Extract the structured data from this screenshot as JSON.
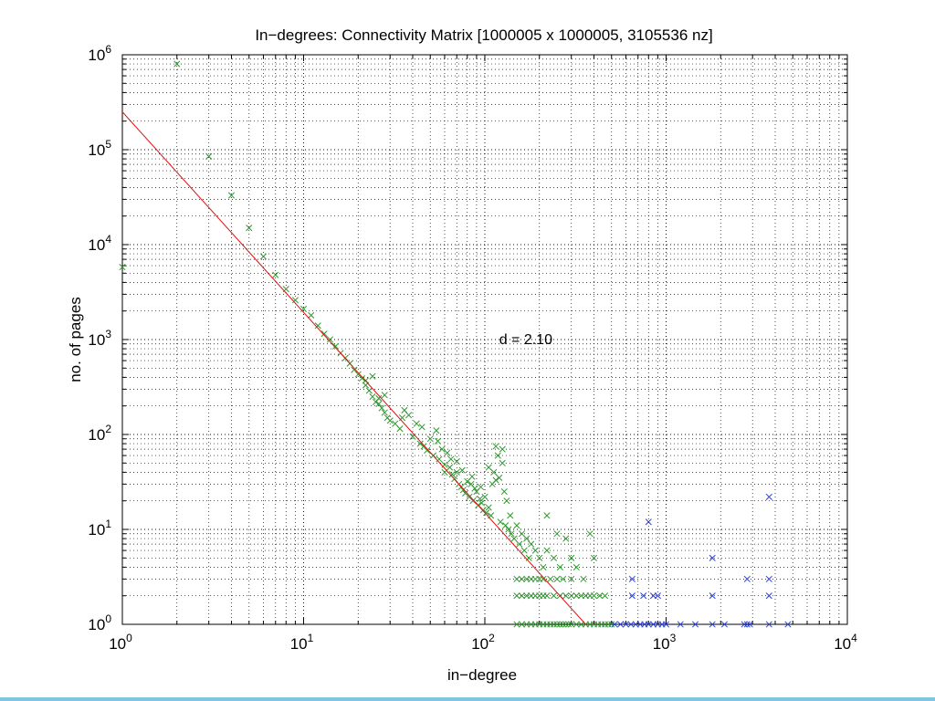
{
  "colors": {
    "background": "#ffffff",
    "green": "#2e9a2e",
    "blue": "#2a3fe0",
    "fit_line": "#e01010",
    "bottom_bar": "#7fc6e3"
  },
  "chart_data": {
    "type": "scatter",
    "title": "In−degrees: Connectivity Matrix [1000005 x 1000005, 3105536 nz]",
    "xlabel": "in−degree",
    "ylabel": "no. of pages",
    "xscale": "log",
    "yscale": "log",
    "xlim": [
      1,
      10000
    ],
    "ylim": [
      1,
      1000000
    ],
    "grid": "on",
    "x_ticks": [
      {
        "base": "10",
        "exp": "0",
        "value": 1
      },
      {
        "base": "10",
        "exp": "1",
        "value": 10
      },
      {
        "base": "10",
        "exp": "2",
        "value": 100
      },
      {
        "base": "10",
        "exp": "3",
        "value": 1000
      },
      {
        "base": "10",
        "exp": "4",
        "value": 10000
      }
    ],
    "y_ticks": [
      {
        "base": "10",
        "exp": "0",
        "value": 1
      },
      {
        "base": "10",
        "exp": "1",
        "value": 10
      },
      {
        "base": "10",
        "exp": "2",
        "value": 100
      },
      {
        "base": "10",
        "exp": "3",
        "value": 1000
      },
      {
        "base": "10",
        "exp": "4",
        "value": 10000
      },
      {
        "base": "10",
        "exp": "5",
        "value": 100000
      },
      {
        "base": "10",
        "exp": "6",
        "value": 1000000
      }
    ],
    "annotation": {
      "text": "d = 2.10",
      "x": 120,
      "y": 900
    },
    "fit_line": {
      "x": [
        1,
        360
      ],
      "y": [
        250000,
        1
      ]
    },
    "series": [
      {
        "color": "green",
        "marker": "x",
        "points": [
          [
            1,
            5800
          ],
          [
            2,
            800000
          ],
          [
            3,
            85000
          ],
          [
            4,
            33000
          ],
          [
            5,
            15000
          ],
          [
            6,
            7500
          ],
          [
            7,
            4800
          ],
          [
            8,
            3400
          ],
          [
            9,
            2600
          ],
          [
            10,
            2100
          ],
          [
            11,
            1800
          ],
          [
            12,
            1400
          ],
          [
            13,
            1150
          ],
          [
            14,
            1000
          ],
          [
            15,
            850
          ],
          [
            16,
            720
          ],
          [
            17,
            640
          ],
          [
            18,
            560
          ],
          [
            19,
            480
          ],
          [
            20,
            430
          ],
          [
            21,
            390
          ],
          [
            22,
            330
          ],
          [
            23,
            290
          ],
          [
            24,
            250
          ],
          [
            25,
            220
          ],
          [
            26,
            210
          ],
          [
            27,
            190
          ],
          [
            28,
            170
          ],
          [
            29,
            150
          ],
          [
            30,
            140
          ],
          [
            22,
            370
          ],
          [
            26,
            240
          ],
          [
            32,
            130
          ],
          [
            34,
            115
          ],
          [
            36,
            180
          ],
          [
            38,
            160
          ],
          [
            40,
            95
          ],
          [
            42,
            130
          ],
          [
            44,
            80
          ],
          [
            46,
            75
          ],
          [
            48,
            68
          ],
          [
            50,
            90
          ],
          [
            52,
            60
          ],
          [
            54,
            110
          ],
          [
            56,
            55
          ],
          [
            58,
            70
          ],
          [
            60,
            48
          ],
          [
            62,
            64
          ],
          [
            64,
            45
          ],
          [
            66,
            38
          ],
          [
            68,
            34
          ],
          [
            70,
            40
          ],
          [
            72,
            30
          ],
          [
            74,
            28
          ],
          [
            76,
            26
          ],
          [
            78,
            24
          ],
          [
            80,
            32
          ],
          [
            82,
            22
          ],
          [
            84,
            30
          ],
          [
            86,
            20
          ],
          [
            88,
            27
          ],
          [
            90,
            25
          ],
          [
            92,
            18
          ],
          [
            94,
            21
          ],
          [
            96,
            19
          ],
          [
            98,
            16
          ],
          [
            100,
            22
          ],
          [
            102,
            15
          ],
          [
            105,
            17
          ],
          [
            108,
            14
          ],
          [
            110,
            30
          ],
          [
            112,
            40
          ],
          [
            115,
            75
          ],
          [
            118,
            60
          ],
          [
            120,
            35
          ],
          [
            122,
            12
          ],
          [
            125,
            50
          ],
          [
            128,
            25
          ],
          [
            130,
            11
          ],
          [
            132,
            20
          ],
          [
            135,
            10
          ],
          [
            138,
            14
          ],
          [
            140,
            9
          ],
          [
            145,
            8
          ],
          [
            150,
            11
          ],
          [
            155,
            7
          ],
          [
            160,
            9
          ],
          [
            165,
            6
          ],
          [
            170,
            8
          ],
          [
            175,
            5
          ],
          [
            180,
            7
          ],
          [
            190,
            6
          ],
          [
            200,
            5
          ],
          [
            210,
            4
          ],
          [
            220,
            6
          ],
          [
            240,
            5
          ],
          [
            260,
            4
          ],
          [
            280,
            8
          ],
          [
            300,
            5
          ],
          [
            320,
            4
          ],
          [
            350,
            3
          ],
          [
            380,
            9
          ],
          [
            400,
            5
          ],
          [
            220,
            14
          ],
          [
            250,
            9
          ],
          [
            55,
            85
          ],
          [
            65,
            55
          ],
          [
            75,
            42
          ],
          [
            85,
            36
          ],
          [
            95,
            28
          ],
          [
            105,
            45
          ],
          [
            115,
            33
          ],
          [
            125,
            70
          ],
          [
            45,
            120
          ],
          [
            35,
            150
          ],
          [
            28,
            260
          ],
          [
            24,
            410
          ],
          [
            60,
            40
          ],
          [
            70,
            52
          ],
          [
            150,
            3
          ],
          [
            160,
            3
          ],
          [
            170,
            3
          ],
          [
            180,
            3
          ],
          [
            190,
            3
          ],
          [
            200,
            3
          ],
          [
            210,
            3
          ],
          [
            230,
            3
          ],
          [
            250,
            3
          ],
          [
            270,
            3
          ],
          [
            300,
            3
          ],
          [
            150,
            2
          ],
          [
            160,
            2
          ],
          [
            170,
            2
          ],
          [
            180,
            2
          ],
          [
            190,
            2
          ],
          [
            200,
            2
          ],
          [
            210,
            2
          ],
          [
            220,
            2
          ],
          [
            240,
            2
          ],
          [
            260,
            2
          ],
          [
            280,
            2
          ],
          [
            300,
            2
          ],
          [
            320,
            2
          ],
          [
            340,
            2
          ],
          [
            360,
            2
          ],
          [
            380,
            2
          ],
          [
            400,
            2
          ],
          [
            430,
            2
          ],
          [
            460,
            2
          ],
          [
            150,
            1
          ],
          [
            160,
            1
          ],
          [
            170,
            1
          ],
          [
            180,
            1
          ],
          [
            190,
            1
          ],
          [
            200,
            1
          ],
          [
            210,
            1
          ],
          [
            220,
            1
          ],
          [
            230,
            1
          ],
          [
            240,
            1
          ],
          [
            250,
            1
          ],
          [
            260,
            1
          ],
          [
            270,
            1
          ],
          [
            280,
            1
          ],
          [
            290,
            1
          ],
          [
            300,
            1
          ],
          [
            320,
            1
          ],
          [
            340,
            1
          ],
          [
            360,
            1
          ],
          [
            380,
            1
          ],
          [
            400,
            1
          ],
          [
            420,
            1
          ],
          [
            440,
            1
          ],
          [
            460,
            1
          ],
          [
            480,
            1
          ],
          [
            500,
            1
          ]
        ]
      },
      {
        "color": "blue",
        "marker": "x",
        "points": [
          [
            800,
            12
          ],
          [
            1800,
            5
          ],
          [
            3700,
            22
          ],
          [
            650,
            3
          ],
          [
            2800,
            3
          ],
          [
            3700,
            3
          ],
          [
            650,
            2
          ],
          [
            750,
            2
          ],
          [
            850,
            2
          ],
          [
            900,
            2
          ],
          [
            1800,
            2
          ],
          [
            3700,
            2
          ],
          [
            520,
            1
          ],
          [
            560,
            1
          ],
          [
            600,
            1
          ],
          [
            640,
            1
          ],
          [
            680,
            1
          ],
          [
            720,
            1
          ],
          [
            760,
            1
          ],
          [
            800,
            1
          ],
          [
            850,
            1
          ],
          [
            900,
            1
          ],
          [
            950,
            1
          ],
          [
            1000,
            1
          ],
          [
            1200,
            1
          ],
          [
            1450,
            1
          ],
          [
            1800,
            1
          ],
          [
            2100,
            1
          ],
          [
            2700,
            1
          ],
          [
            2800,
            1
          ],
          [
            2900,
            1
          ],
          [
            3700,
            1
          ],
          [
            4700,
            1
          ]
        ]
      }
    ]
  }
}
